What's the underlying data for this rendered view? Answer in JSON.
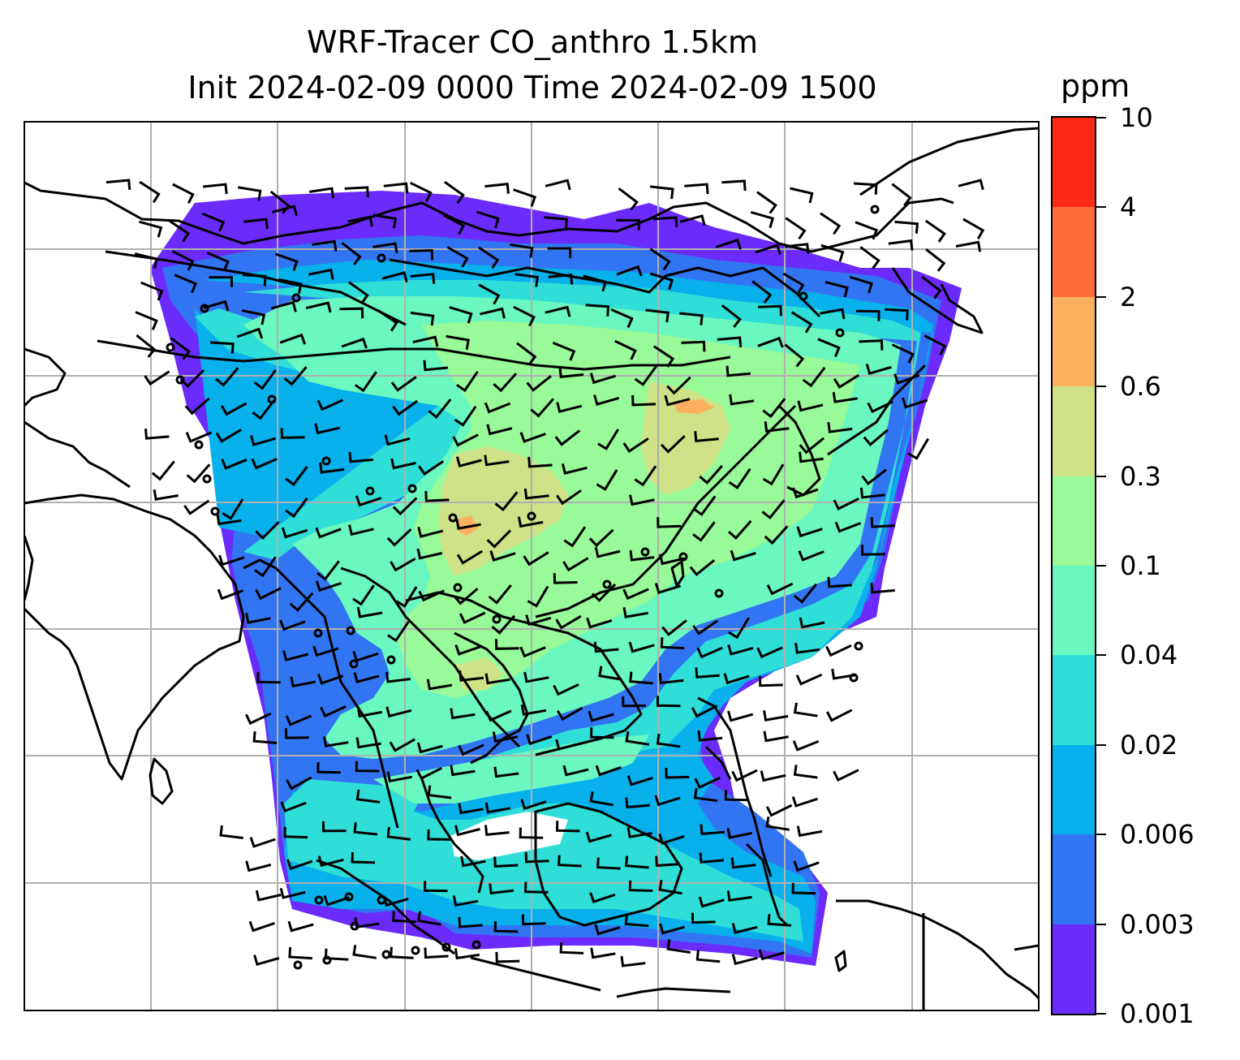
{
  "title": {
    "line1": "WRF-Tracer CO_anthro 1.5km",
    "line2": "Init 2024-02-09 0000 Time 2024-02-09 1500"
  },
  "colorbar": {
    "unit": "ppm",
    "ticks": [
      "0.001",
      "0.003",
      "0.006",
      "0.02",
      "0.04",
      "0.1",
      "0.3",
      "0.6",
      "2",
      "4",
      "10"
    ],
    "colors": [
      "#6a2bfb",
      "#3275f2",
      "#08b0ec",
      "#2fdfd7",
      "#6af7c0",
      "#98fa98",
      "#cfe287",
      "#feb061",
      "#fd6d3a",
      "#fe2a17"
    ]
  },
  "map": {
    "field_colors": {
      "lowest": "#6a2bfb",
      "low": "#3275f2",
      "cyan": "#08b0ec",
      "teal": "#2fdfd7",
      "aqua": "#6af7c0",
      "green": "#98fa98",
      "olive": "#cfe287",
      "orange": "#feb061"
    },
    "gridline_color": "#b0b0b0",
    "coastline_color": "#000000"
  }
}
